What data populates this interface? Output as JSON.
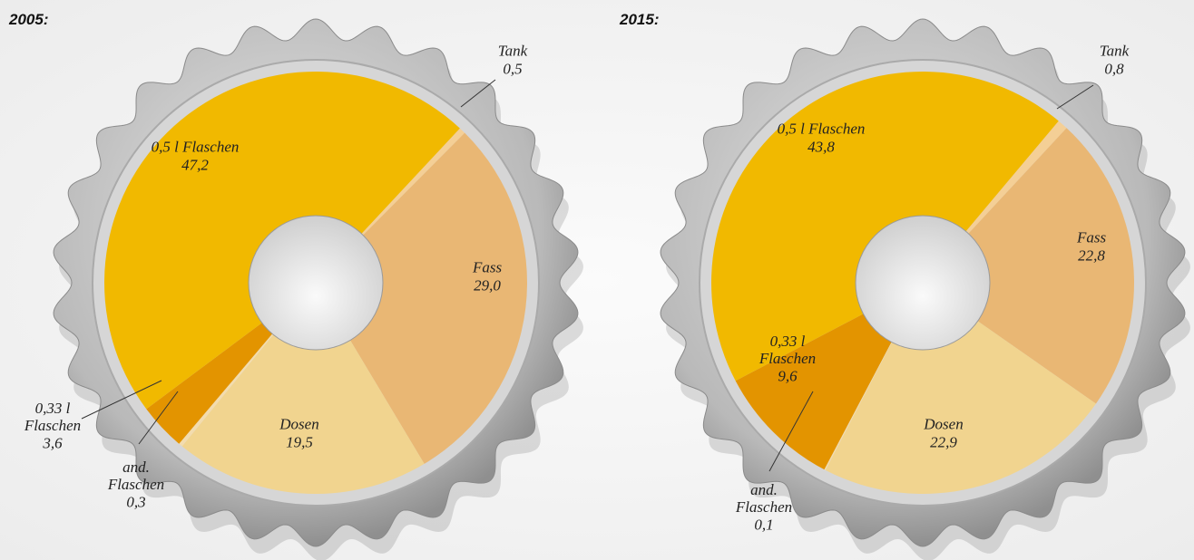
{
  "chart_data": [
    {
      "type": "pie",
      "title": "2005:",
      "categories": [
        "Tank",
        "Fass",
        "Dosen",
        "and. Flaschen",
        "0,33 l Flaschen",
        "0,5 l Flaschen"
      ],
      "values": [
        0.5,
        29.0,
        19.5,
        0.3,
        3.6,
        47.2
      ],
      "value_labels": [
        "0,5",
        "29,0",
        "19,5",
        "0,3",
        "3,6",
        "47,2"
      ],
      "colors": [
        "#f4cf96",
        "#e9b774",
        "#f1d48f",
        "#f3dcae",
        "#e39400",
        "#f1b900"
      ]
    },
    {
      "type": "pie",
      "title": "2015:",
      "categories": [
        "Tank",
        "Fass",
        "Dosen",
        "and. Flaschen",
        "0,33 l Flaschen",
        "0,5 l Flaschen"
      ],
      "values": [
        0.8,
        22.8,
        22.9,
        0.1,
        9.6,
        43.8
      ],
      "value_labels": [
        "0,8",
        "22,8",
        "22,9",
        "0,1",
        "9,6",
        "43,8"
      ],
      "colors": [
        "#f4cf96",
        "#e9b774",
        "#f1d48f",
        "#f3dcae",
        "#e39400",
        "#f1b900"
      ]
    }
  ]
}
